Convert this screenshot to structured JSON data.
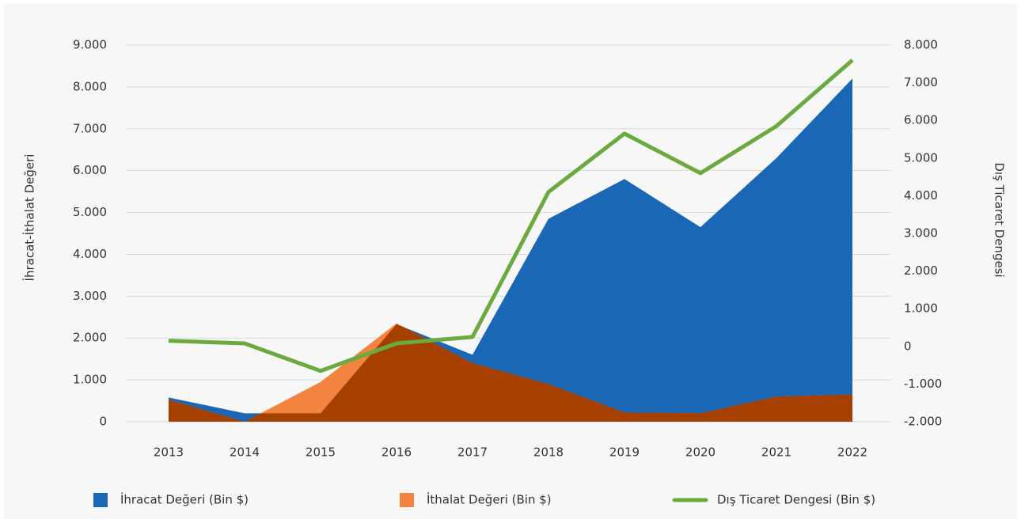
{
  "chart_data": {
    "type": "area",
    "y_label": "İhracat-İthalat Değeri",
    "y2_label": "Dış Ticaret Dengesi",
    "categories": [
      "2013",
      "2014",
      "2015",
      "2016",
      "2017",
      "2018",
      "2019",
      "2020",
      "2021",
      "2022"
    ],
    "series": [
      {
        "name": "İhracat Değeri (Bin $)",
        "color": "#1a67b6",
        "type": "area",
        "values": [
          580,
          200,
          200,
          2330,
          1600,
          4850,
          5800,
          4650,
          6300,
          8200
        ]
      },
      {
        "name": "İthalat Değeri (Bin $)",
        "color": "#f2843f",
        "type": "area",
        "overlap_color": "#a54000",
        "values": [
          530,
          0,
          950,
          2350,
          1400,
          900,
          220,
          200,
          600,
          650
        ]
      },
      {
        "name": "Dış Ticaret Dengesi (Bin $)",
        "color": "#6aaa3f",
        "type": "line",
        "axis": "y2",
        "values": [
          150,
          80,
          -650,
          80,
          250,
          4100,
          5650,
          4600,
          5850,
          7600
        ]
      }
    ],
    "ylim": [
      0,
      9000
    ],
    "yticks": [
      0,
      {
        "value": 1000,
        "label": "1.000"
      },
      {
        "value": 2000,
        "label": "2.000"
      },
      {
        "value": 3000,
        "label": "3.000"
      },
      {
        "value": 4000,
        "label": "4.000"
      },
      {
        "value": 5000,
        "label": "5.000"
      },
      {
        "value": 6000,
        "label": "6.000"
      },
      {
        "value": 7000,
        "label": "7.000"
      },
      {
        "value": 8000,
        "label": "8.000"
      },
      {
        "value": 9000,
        "label": "9.000"
      }
    ],
    "y2lim": [
      -2000,
      8000
    ],
    "y2ticks": [
      {
        "value": -2000,
        "label": "-2.000"
      },
      {
        "value": -1000,
        "label": "-1.000"
      },
      0,
      {
        "value": 1000,
        "label": "1.000"
      },
      {
        "value": 2000,
        "label": "2.000"
      },
      {
        "value": 3000,
        "label": "3.000"
      },
      {
        "value": 4000,
        "label": "4.000"
      },
      {
        "value": 5000,
        "label": "5.000"
      },
      {
        "value": 6000,
        "label": "6.000"
      },
      {
        "value": 7000,
        "label": "7.000"
      },
      {
        "value": 8000,
        "label": "8.000"
      }
    ],
    "grid": true,
    "legend": "bottom"
  }
}
